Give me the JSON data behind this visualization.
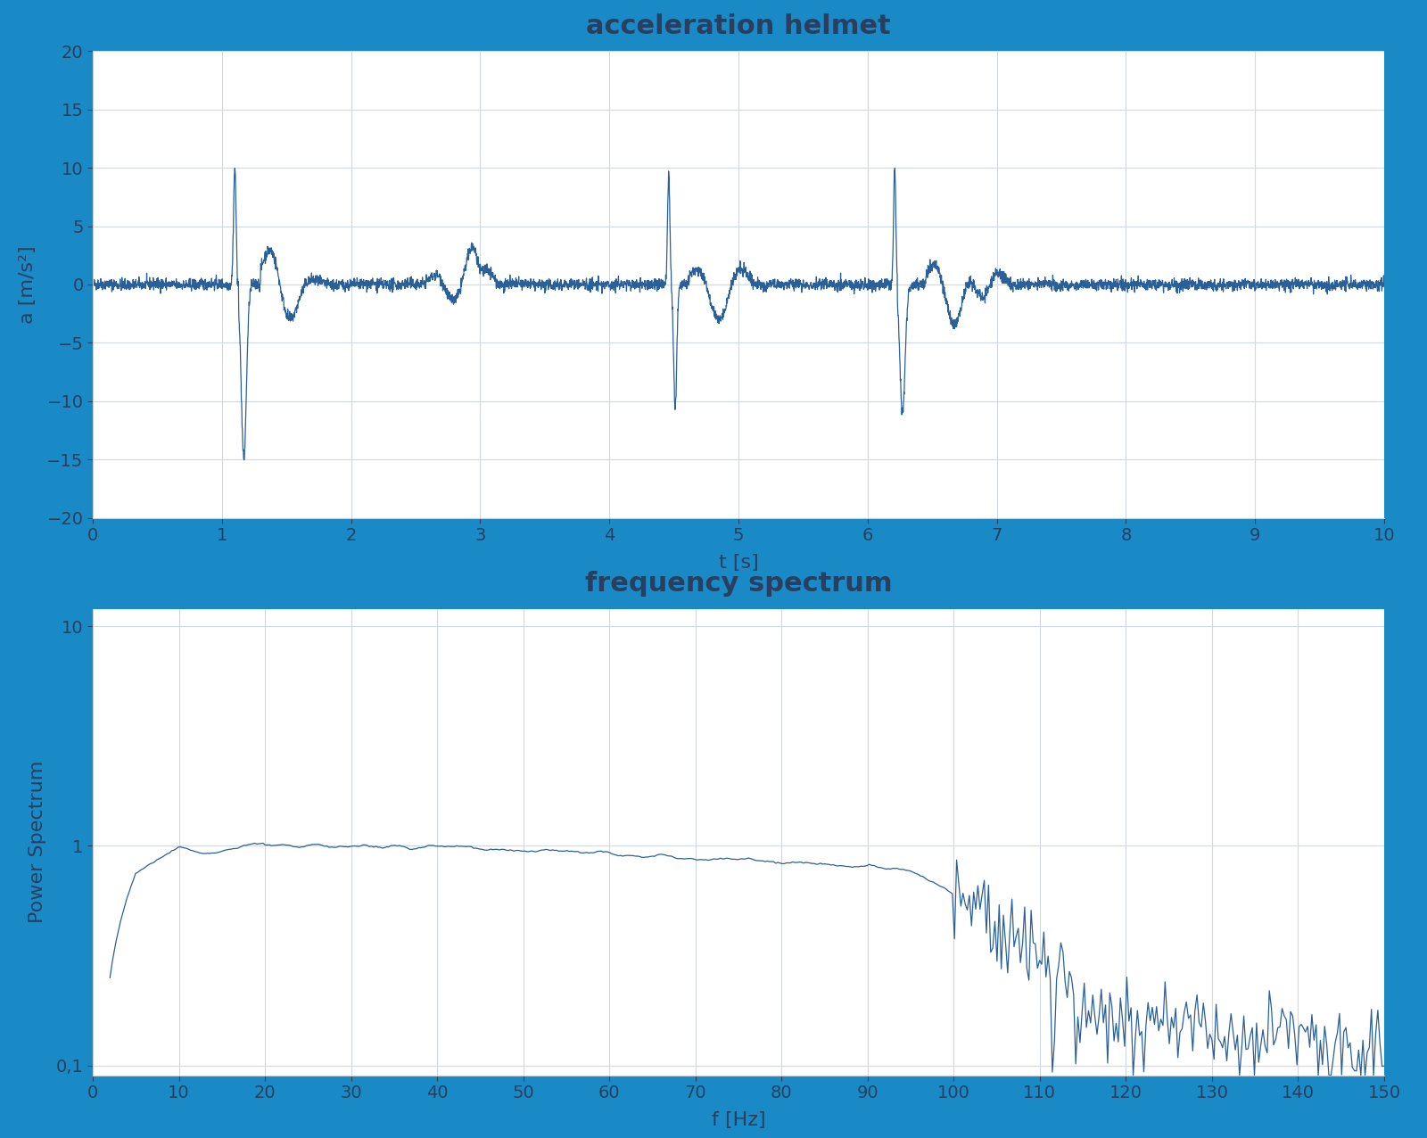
{
  "background_color": "#1a8ac6",
  "panel_bg": "#ffffff",
  "line_color": "#2a6099",
  "title1": "acceleration helmet",
  "title2": "frequency spectrum",
  "xlabel1": "t [s]",
  "ylabel1": "a [m/s²]",
  "xlabel2": "f [Hz]",
  "ylabel2": "Power Spectrum",
  "xlim1": [
    0,
    10
  ],
  "ylim1": [
    -20,
    20
  ],
  "xlim2": [
    0,
    150
  ],
  "ylim2_log": [
    0.09,
    12
  ],
  "title_fontsize": 22,
  "label_fontsize": 16,
  "tick_fontsize": 14,
  "title_color": "#2a3f5f",
  "grid_color": "#d0d8e0",
  "spine_color": "#cccccc"
}
